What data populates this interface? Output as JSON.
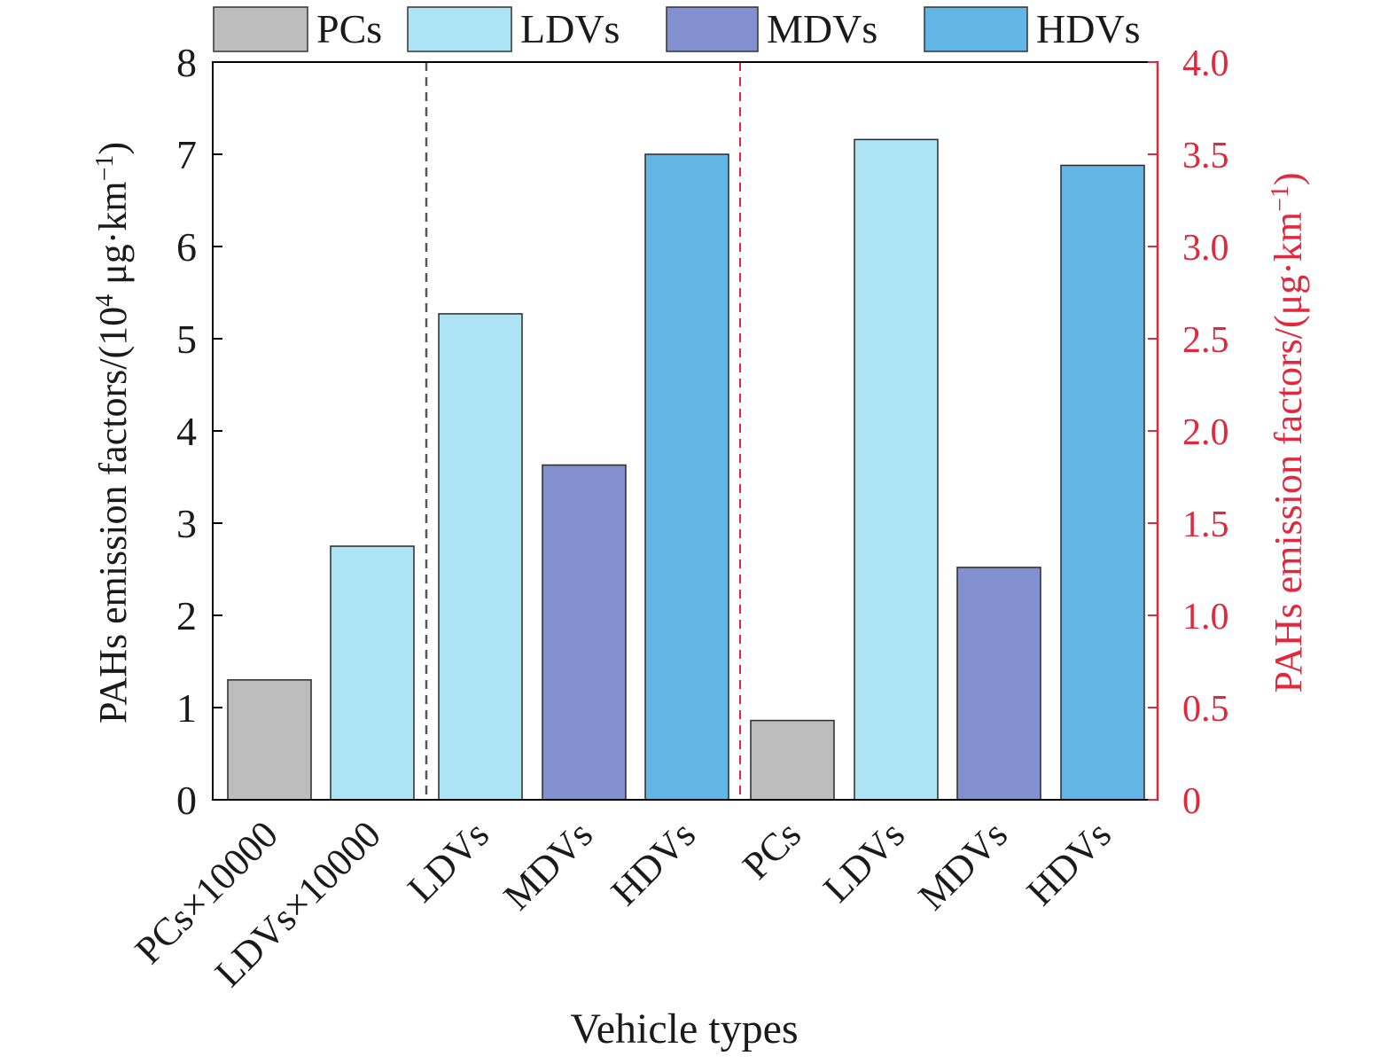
{
  "chart_data": {
    "type": "bar",
    "xlabel": "Vehicle types",
    "ylabel_left": "PAHs emission factors/(10",
    "ylabel_left_exp": "4",
    "ylabel_left_unit": " μg·km",
    "ylabel_left_unit_exp": "−1",
    "ylabel_left_close": ")",
    "ylabel_right": "PAHs emission factors/(μg·km",
    "ylabel_right_exp": "−1",
    "ylabel_right_close": ")",
    "ylim_left": [
      0,
      8
    ],
    "ylim_right": [
      0,
      4.0
    ],
    "yticks_left": [
      "0",
      "1",
      "2",
      "3",
      "4",
      "5",
      "6",
      "7",
      "8"
    ],
    "yticks_right": [
      "0",
      "0.5",
      "1.0",
      "1.5",
      "2.0",
      "2.5",
      "3.0",
      "3.5",
      "4.0"
    ],
    "legend": {
      "placement": "top",
      "entries": [
        {
          "label": "PCs",
          "color": "#bdbdbd"
        },
        {
          "label": "LDVs",
          "color": "#ade4f5"
        },
        {
          "label": "MDVs",
          "color": "#8390cf"
        },
        {
          "label": "HDVs",
          "color": "#62b6e6"
        }
      ]
    },
    "bars": [
      {
        "label": "PCs×10000",
        "value": 1.3,
        "axis": "left",
        "color": "#bdbdbd"
      },
      {
        "label": "LDVs×10000",
        "value": 2.75,
        "axis": "left",
        "color": "#ade4f5"
      },
      {
        "label": "LDVs",
        "value": 5.27,
        "axis": "left",
        "color": "#ade4f5"
      },
      {
        "label": "MDVs",
        "value": 3.63,
        "axis": "left",
        "color": "#8390cf"
      },
      {
        "label": "HDVs",
        "value": 7.0,
        "axis": "left",
        "color": "#62b6e6"
      },
      {
        "label": "PCs",
        "value": 0.43,
        "axis": "right",
        "color": "#bdbdbd"
      },
      {
        "label": "LDVs",
        "value": 3.58,
        "axis": "right",
        "color": "#ade4f5"
      },
      {
        "label": "MDVs",
        "value": 1.26,
        "axis": "right",
        "color": "#8390cf"
      },
      {
        "label": "HDVs",
        "value": 3.44,
        "axis": "right",
        "color": "#62b6e6"
      }
    ],
    "right_axis_color": "#e2283c",
    "grid": false
  }
}
